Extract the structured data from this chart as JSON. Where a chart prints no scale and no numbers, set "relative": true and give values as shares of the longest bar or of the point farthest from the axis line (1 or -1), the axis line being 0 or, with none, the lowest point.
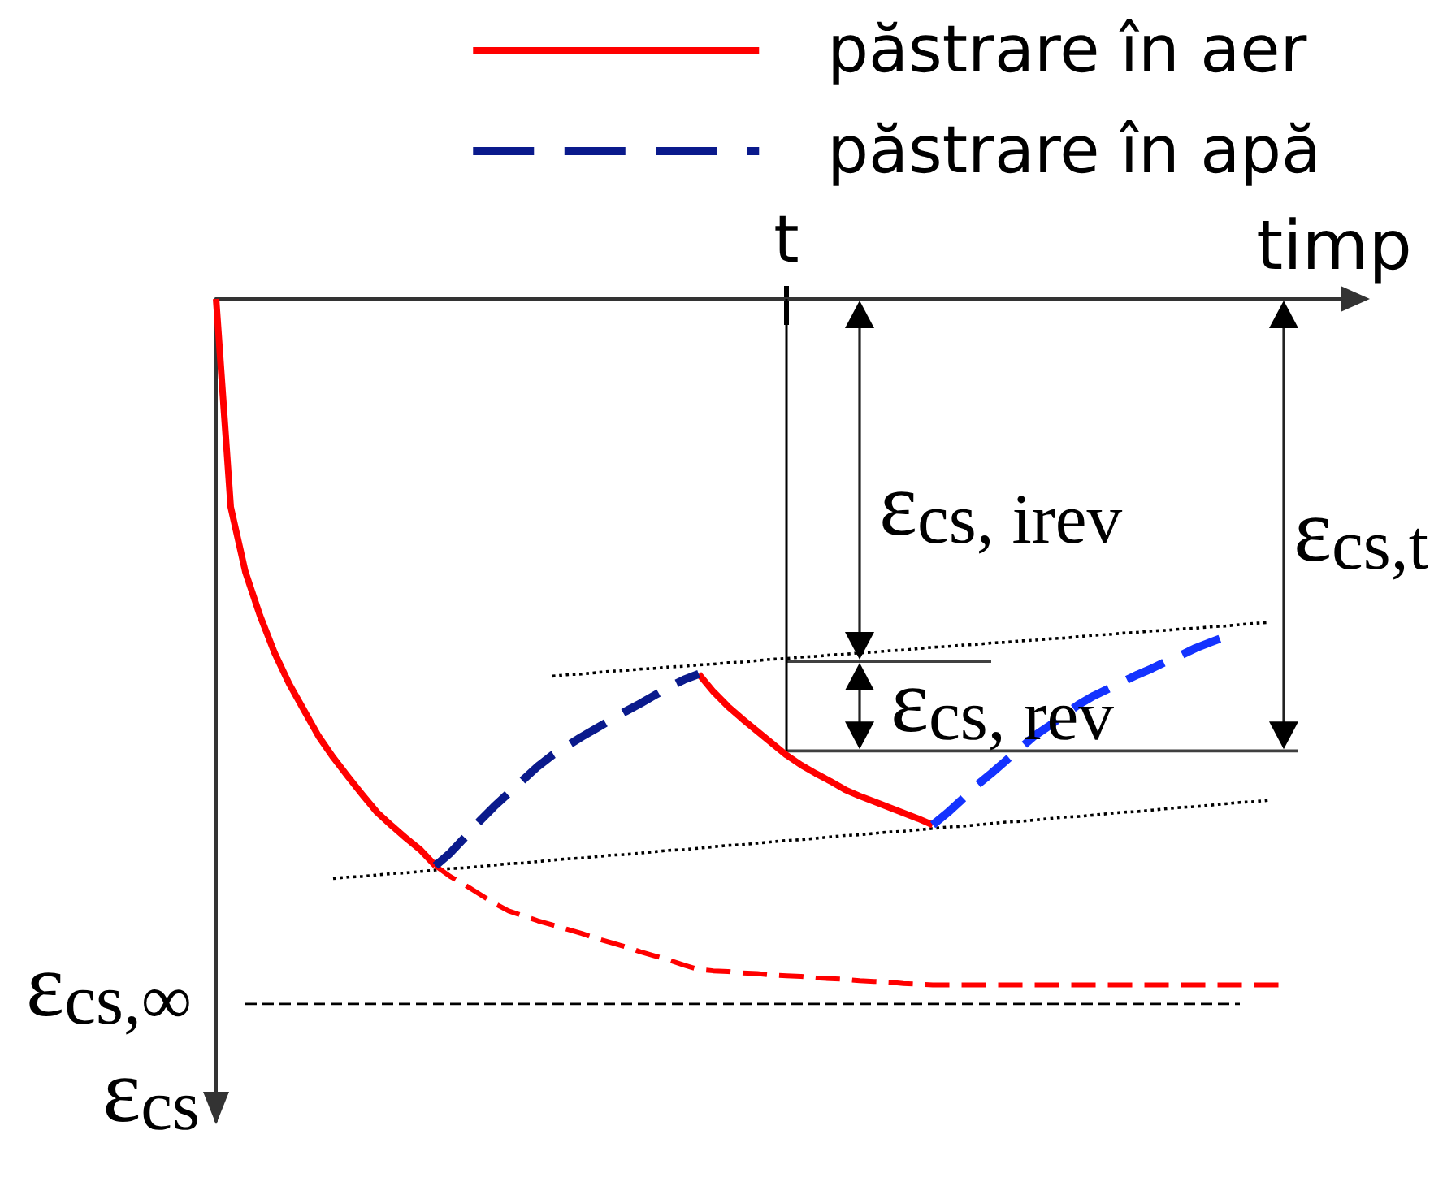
{
  "chart_data": {
    "type": "line",
    "relative": true,
    "xlabel": "timp",
    "ylabel": "ε$_{cs}$",
    "legend": "top right",
    "grid": false,
    "categories": [
      null,
      null,
      null,
      null,
      null,
      null,
      null,
      null,
      null,
      null,
      null,
      null,
      null,
      null,
      null,
      null,
      null,
      null,
      null,
      null,
      null,
      null,
      null,
      null,
      null,
      null,
      null,
      null,
      null,
      null,
      null,
      null,
      null,
      null,
      null,
      null,
      null,
      null,
      null,
      null,
      null,
      null,
      null,
      null,
      null,
      null,
      null,
      null,
      null,
      null,
      null,
      null,
      null,
      null,
      null,
      null,
      null,
      null,
      null,
      null,
      null,
      null,
      null,
      null,
      null,
      null,
      null,
      null,
      null,
      null,
      null,
      null,
      null,
      null,
      null,
      null,
      null,
      null,
      null
    ],
    "series": [
      {
        "name": "păstrare în aer",
        "color": "#ff0000",
        "line_style": "solid",
        "values": [
          0,
          -0.295,
          -0.387,
          -0.449,
          -0.502,
          -0.546,
          -0.583,
          -0.62,
          -0.65,
          -0.677,
          -0.703,
          -0.728,
          -0.747,
          -0.765,
          -0.782,
          -0.804,
          null,
          null,
          null,
          null,
          null,
          null,
          null,
          null,
          null,
          null,
          null,
          null,
          null,
          null,
          null,
          null,
          null,
          -0.532,
          -0.557,
          -0.578,
          -0.596,
          -0.613,
          -0.63,
          -0.647,
          -0.661,
          -0.673,
          -0.684,
          -0.696,
          -0.705,
          -0.713,
          -0.721,
          -0.729,
          -0.737,
          -0.746,
          null,
          null,
          null,
          null,
          null,
          null,
          null,
          null,
          null,
          null,
          null,
          null,
          null,
          null,
          null,
          null,
          null,
          null,
          null,
          null,
          null,
          null,
          null,
          null,
          null,
          null,
          null,
          null,
          null
        ]
      },
      {
        "name": "păstrare în apă",
        "color": "#0a1a8c",
        "line_style": "dashed",
        "values": [
          null,
          null,
          null,
          null,
          null,
          null,
          null,
          null,
          null,
          null,
          null,
          null,
          null,
          null,
          null,
          -0.804,
          -0.786,
          -0.764,
          -0.741,
          -0.72,
          -0.701,
          -0.682,
          -0.663,
          -0.647,
          -0.634,
          -0.621,
          -0.609,
          -0.597,
          -0.585,
          -0.574,
          -0.562,
          -0.55,
          -0.54,
          -0.532,
          null,
          null,
          null,
          null,
          null,
          null,
          null,
          null,
          null,
          null,
          null,
          null,
          null,
          null,
          null,
          null,
          null,
          null,
          null,
          null,
          null,
          null,
          null,
          null,
          null,
          null,
          null,
          null,
          null,
          null,
          null,
          null,
          null,
          null,
          null,
          null,
          null,
          null,
          null,
          null,
          null,
          null,
          null,
          null,
          null
        ]
      },
      {
        "color": "#1433ff",
        "line_style": "dashed",
        "values": [
          null,
          null,
          null,
          null,
          null,
          null,
          null,
          null,
          null,
          null,
          null,
          null,
          null,
          null,
          null,
          null,
          null,
          null,
          null,
          null,
          null,
          null,
          null,
          null,
          null,
          null,
          null,
          null,
          null,
          null,
          null,
          null,
          null,
          null,
          null,
          null,
          null,
          null,
          null,
          null,
          null,
          null,
          null,
          null,
          null,
          null,
          null,
          null,
          null,
          -0.746,
          -0.729,
          -0.71,
          -0.69,
          -0.673,
          -0.655,
          -0.637,
          -0.619,
          -0.605,
          -0.59,
          -0.575,
          -0.563,
          -0.553,
          -0.543,
          -0.533,
          -0.524,
          -0.514,
          -0.505,
          -0.495,
          -0.487,
          -0.479,
          null,
          null,
          null,
          null,
          null,
          null,
          null,
          null,
          null
        ]
      },
      {
        "color": "#ff0000",
        "line_style": "dashed",
        "values": [
          null,
          null,
          null,
          null,
          null,
          null,
          null,
          null,
          null,
          null,
          null,
          null,
          null,
          null,
          null,
          -0.804,
          -0.819,
          -0.831,
          -0.844,
          -0.857,
          -0.868,
          -0.875,
          -0.882,
          -0.888,
          -0.894,
          -0.9,
          -0.907,
          -0.913,
          -0.919,
          -0.926,
          -0.932,
          -0.938,
          -0.945,
          -0.951,
          -0.953,
          -0.954,
          -0.956,
          -0.957,
          -0.959,
          -0.96,
          -0.961,
          -0.963,
          -0.964,
          -0.965,
          -0.967,
          -0.968,
          -0.969,
          -0.971,
          -0.972,
          -0.973,
          -0.973,
          -0.973,
          -0.973,
          -0.973,
          -0.973,
          -0.973,
          -0.973,
          -0.973,
          -0.973,
          -0.973,
          -0.973,
          -0.973,
          -0.973,
          -0.973,
          -0.973,
          -0.973,
          -0.973,
          -0.973,
          -0.973,
          -0.973,
          -0.973,
          -0.973,
          -0.973,
          -0.973,
          null,
          null,
          null,
          null,
          null
        ]
      },
      {
        "color": "#000000",
        "line_style": "dotted",
        "values": [
          null,
          null,
          null,
          null,
          null,
          null,
          null,
          null,
          null,
          null,
          null,
          null,
          null,
          null,
          null,
          null,
          null,
          null,
          null,
          null,
          null,
          null,
          null,
          -0.535,
          -0.533,
          -0.532,
          -0.53,
          -0.528,
          -0.527,
          -0.525,
          -0.524,
          -0.522,
          -0.521,
          -0.519,
          -0.518,
          -0.516,
          -0.515,
          -0.513,
          -0.511,
          -0.51,
          -0.508,
          -0.507,
          -0.505,
          -0.504,
          -0.502,
          -0.501,
          -0.499,
          -0.498,
          -0.496,
          -0.494,
          -0.493,
          -0.491,
          -0.49,
          -0.488,
          -0.487,
          -0.485,
          -0.484,
          -0.482,
          -0.481,
          -0.479,
          -0.477,
          -0.476,
          -0.474,
          -0.473,
          -0.471,
          -0.47,
          -0.468,
          -0.467,
          -0.465,
          -0.464,
          -0.462,
          -0.46,
          -0.459,
          null,
          null,
          null,
          null,
          null,
          null
        ]
      },
      {
        "color": "#000000",
        "line_style": "dotted",
        "values": [
          null,
          null,
          null,
          null,
          null,
          null,
          null,
          null,
          -0.822,
          -0.82,
          -0.819,
          -0.817,
          -0.815,
          -0.814,
          -0.812,
          -0.81,
          -0.808,
          -0.807,
          -0.805,
          -0.803,
          -0.801,
          -0.8,
          -0.798,
          -0.796,
          -0.794,
          -0.793,
          -0.791,
          -0.789,
          -0.788,
          -0.786,
          -0.784,
          -0.782,
          -0.781,
          -0.779,
          -0.777,
          -0.775,
          -0.774,
          -0.772,
          -0.77,
          -0.768,
          -0.767,
          -0.765,
          -0.763,
          -0.761,
          -0.76,
          -0.758,
          -0.756,
          -0.755,
          -0.753,
          -0.751,
          -0.749,
          -0.748,
          -0.746,
          -0.744,
          -0.742,
          -0.741,
          -0.739,
          -0.737,
          -0.735,
          -0.734,
          -0.732,
          -0.73,
          -0.728,
          -0.727,
          -0.725,
          -0.723,
          -0.721,
          -0.72,
          -0.718,
          -0.716,
          -0.714,
          -0.713,
          -0.711,
          null,
          null,
          null,
          null,
          null,
          null
        ]
      },
      {
        "color": "#000000",
        "line_style": "dashed",
        "values": [
          null,
          null,
          -1,
          -1,
          -1,
          -1,
          -1,
          -1,
          -1,
          -1,
          -1,
          -1,
          -1,
          -1,
          -1,
          -1,
          -1,
          -1,
          -1,
          -1,
          -1,
          -1,
          -1,
          -1,
          -1,
          -1,
          -1,
          -1,
          -1,
          -1,
          -1,
          -1,
          -1,
          -1,
          -1,
          -1,
          -1,
          -1,
          -1,
          -1,
          -1,
          -1,
          -1,
          -1,
          -1,
          -1,
          -1,
          -1,
          -1,
          -1,
          -1,
          -1,
          -1,
          -1,
          -1,
          -1,
          -1,
          -1,
          -1,
          -1,
          -1,
          -1,
          -1,
          -1,
          -1,
          -1,
          -1,
          -1,
          -1,
          -1,
          -1,
          null,
          null,
          null,
          null,
          null,
          null,
          null,
          null
        ]
      },
      {
        "color": "#404040",
        "line_style": "solid",
        "values": [
          null,
          null,
          null,
          null,
          null,
          null,
          null,
          null,
          null,
          null,
          null,
          null,
          null,
          null,
          null,
          null,
          null,
          null,
          null,
          null,
          null,
          null,
          null,
          null,
          null,
          null,
          null,
          null,
          null,
          null,
          null,
          null,
          null,
          null,
          null,
          null,
          null,
          null,
          null,
          -0.514,
          -0.514,
          -0.514,
          -0.514,
          -0.514,
          -0.514,
          -0.514,
          -0.514,
          -0.514,
          -0.514,
          -0.514,
          -0.514,
          -0.514,
          -0.514,
          -0.514,
          null,
          null,
          null,
          null,
          null,
          null,
          null,
          null,
          null,
          null,
          null,
          null,
          null,
          null,
          null,
          null,
          null,
          null,
          null,
          null,
          null,
          null,
          null,
          null,
          null
        ]
      },
      {
        "color": "#404040",
        "line_style": "solid",
        "values": [
          null,
          null,
          null,
          null,
          null,
          null,
          null,
          null,
          null,
          null,
          null,
          null,
          null,
          null,
          null,
          null,
          null,
          null,
          null,
          null,
          null,
          null,
          null,
          null,
          null,
          null,
          null,
          null,
          null,
          null,
          null,
          null,
          null,
          null,
          null,
          null,
          null,
          null,
          null,
          -0.641,
          -0.641,
          -0.641,
          -0.641,
          -0.641,
          -0.641,
          -0.641,
          -0.641,
          -0.641,
          -0.641,
          -0.641,
          -0.641,
          -0.641,
          -0.641,
          -0.641,
          -0.641,
          -0.641,
          -0.641,
          -0.641,
          -0.641,
          -0.641,
          -0.641,
          -0.641,
          -0.641,
          -0.641,
          -0.641,
          -0.641,
          -0.641,
          -0.641,
          -0.641,
          -0.641,
          -0.641,
          -0.641,
          -0.641,
          -0.641,
          -0.641,
          null,
          null,
          null,
          null
        ]
      }
    ],
    "annotations": [
      "t",
      "ε$_{cs, irev}$",
      "ε$_{cs, rev}$",
      "ε$_{cs,t}$",
      "ε$_{cs,∞}$"
    ]
  }
}
